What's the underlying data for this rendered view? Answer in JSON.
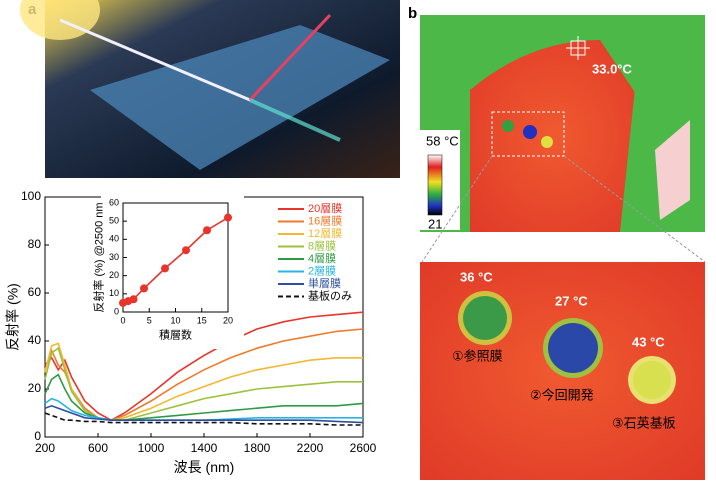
{
  "chart_data": [
    {
      "type": "line",
      "x_label": "波長 (nm)",
      "y_label": "反射率 (%)",
      "x": [
        200,
        250,
        300,
        350,
        400,
        500,
        600,
        700,
        800,
        1000,
        1200,
        1400,
        1600,
        1800,
        2000,
        2200,
        2400,
        2600
      ],
      "xlim": [
        200,
        2600
      ],
      "xticks": [
        200,
        600,
        1000,
        1400,
        1800,
        2200,
        2600
      ],
      "ylim": [
        0,
        100
      ],
      "yticks": [
        0,
        20,
        40,
        60,
        80,
        100
      ],
      "legend": "upper right",
      "series": [
        {
          "name": "20層膜",
          "color": "#e8342a",
          "style": "solid",
          "values": [
            30,
            33,
            28,
            32,
            25,
            15,
            10,
            7,
            10,
            18,
            27,
            34,
            40,
            45,
            48,
            50,
            51,
            52
          ]
        },
        {
          "name": "16層膜",
          "color": "#f07a2a",
          "style": "solid",
          "values": [
            28,
            36,
            30,
            27,
            20,
            12,
            8,
            7,
            9,
            15,
            22,
            28,
            33,
            37,
            40,
            42,
            44,
            45
          ]
        },
        {
          "name": "12層膜",
          "color": "#f2b830",
          "style": "solid",
          "values": [
            27,
            38,
            39,
            30,
            20,
            11,
            8,
            7,
            8,
            12,
            17,
            21,
            25,
            28,
            30,
            32,
            33,
            33
          ]
        },
        {
          "name": "8層膜",
          "color": "#9cc23c",
          "style": "solid",
          "values": [
            24,
            35,
            37,
            28,
            19,
            11,
            8,
            7,
            7,
            10,
            13,
            16,
            18,
            20,
            21,
            22,
            23,
            23
          ]
        },
        {
          "name": "4層膜",
          "color": "#2f9a45",
          "style": "solid",
          "values": [
            18,
            24,
            26,
            20,
            15,
            10,
            8,
            7,
            7,
            8,
            9,
            10,
            11,
            12,
            13,
            13,
            13,
            14
          ]
        },
        {
          "name": "2層膜",
          "color": "#27b5e5",
          "style": "solid",
          "values": [
            14,
            16,
            15,
            13,
            11,
            9,
            8,
            7,
            7,
            7,
            7,
            7,
            7.5,
            8,
            8,
            8,
            8,
            8
          ]
        },
        {
          "name": "単層膜",
          "color": "#2b4fa0",
          "style": "solid",
          "values": [
            12,
            13,
            12,
            11,
            10,
            8,
            7.5,
            7,
            7,
            7,
            7,
            7,
            7,
            7,
            7,
            7,
            6.5,
            6
          ]
        },
        {
          "name": "基板のみ",
          "color": "#111111",
          "style": "dashed",
          "values": [
            10,
            9,
            8,
            7,
            7,
            6.5,
            6.5,
            6,
            6,
            6,
            6,
            6,
            6,
            5.5,
            5.5,
            5.5,
            5,
            5
          ]
        }
      ]
    },
    {
      "type": "line",
      "x_label": "積層数",
      "y_label": "反射率 (%) @2500 nm",
      "x": [
        0,
        1,
        2,
        4,
        8,
        12,
        16,
        20
      ],
      "xlim": [
        0,
        20
      ],
      "xticks": [
        0,
        5,
        10,
        15,
        20
      ],
      "ylim": [
        0,
        60
      ],
      "yticks": [
        0,
        10,
        20,
        30,
        40,
        50,
        60
      ],
      "markers": true,
      "series": [
        {
          "color": "#e8342a",
          "style": "solid",
          "values": [
            5,
            6,
            7,
            13,
            24,
            34,
            45,
            52
          ]
        }
      ]
    }
  ],
  "panel_labels": [
    "a",
    "b"
  ],
  "thermal": {
    "spot": "33.0°C",
    "colorbar_max": "58 °C",
    "colorbar_min": "21",
    "samples": [
      {
        "temp": "36 °C",
        "label": "①参照膜"
      },
      {
        "temp": "27 °C",
        "label": "②今回開発"
      },
      {
        "temp": "43 °C",
        "label": "③石英基板"
      }
    ]
  }
}
